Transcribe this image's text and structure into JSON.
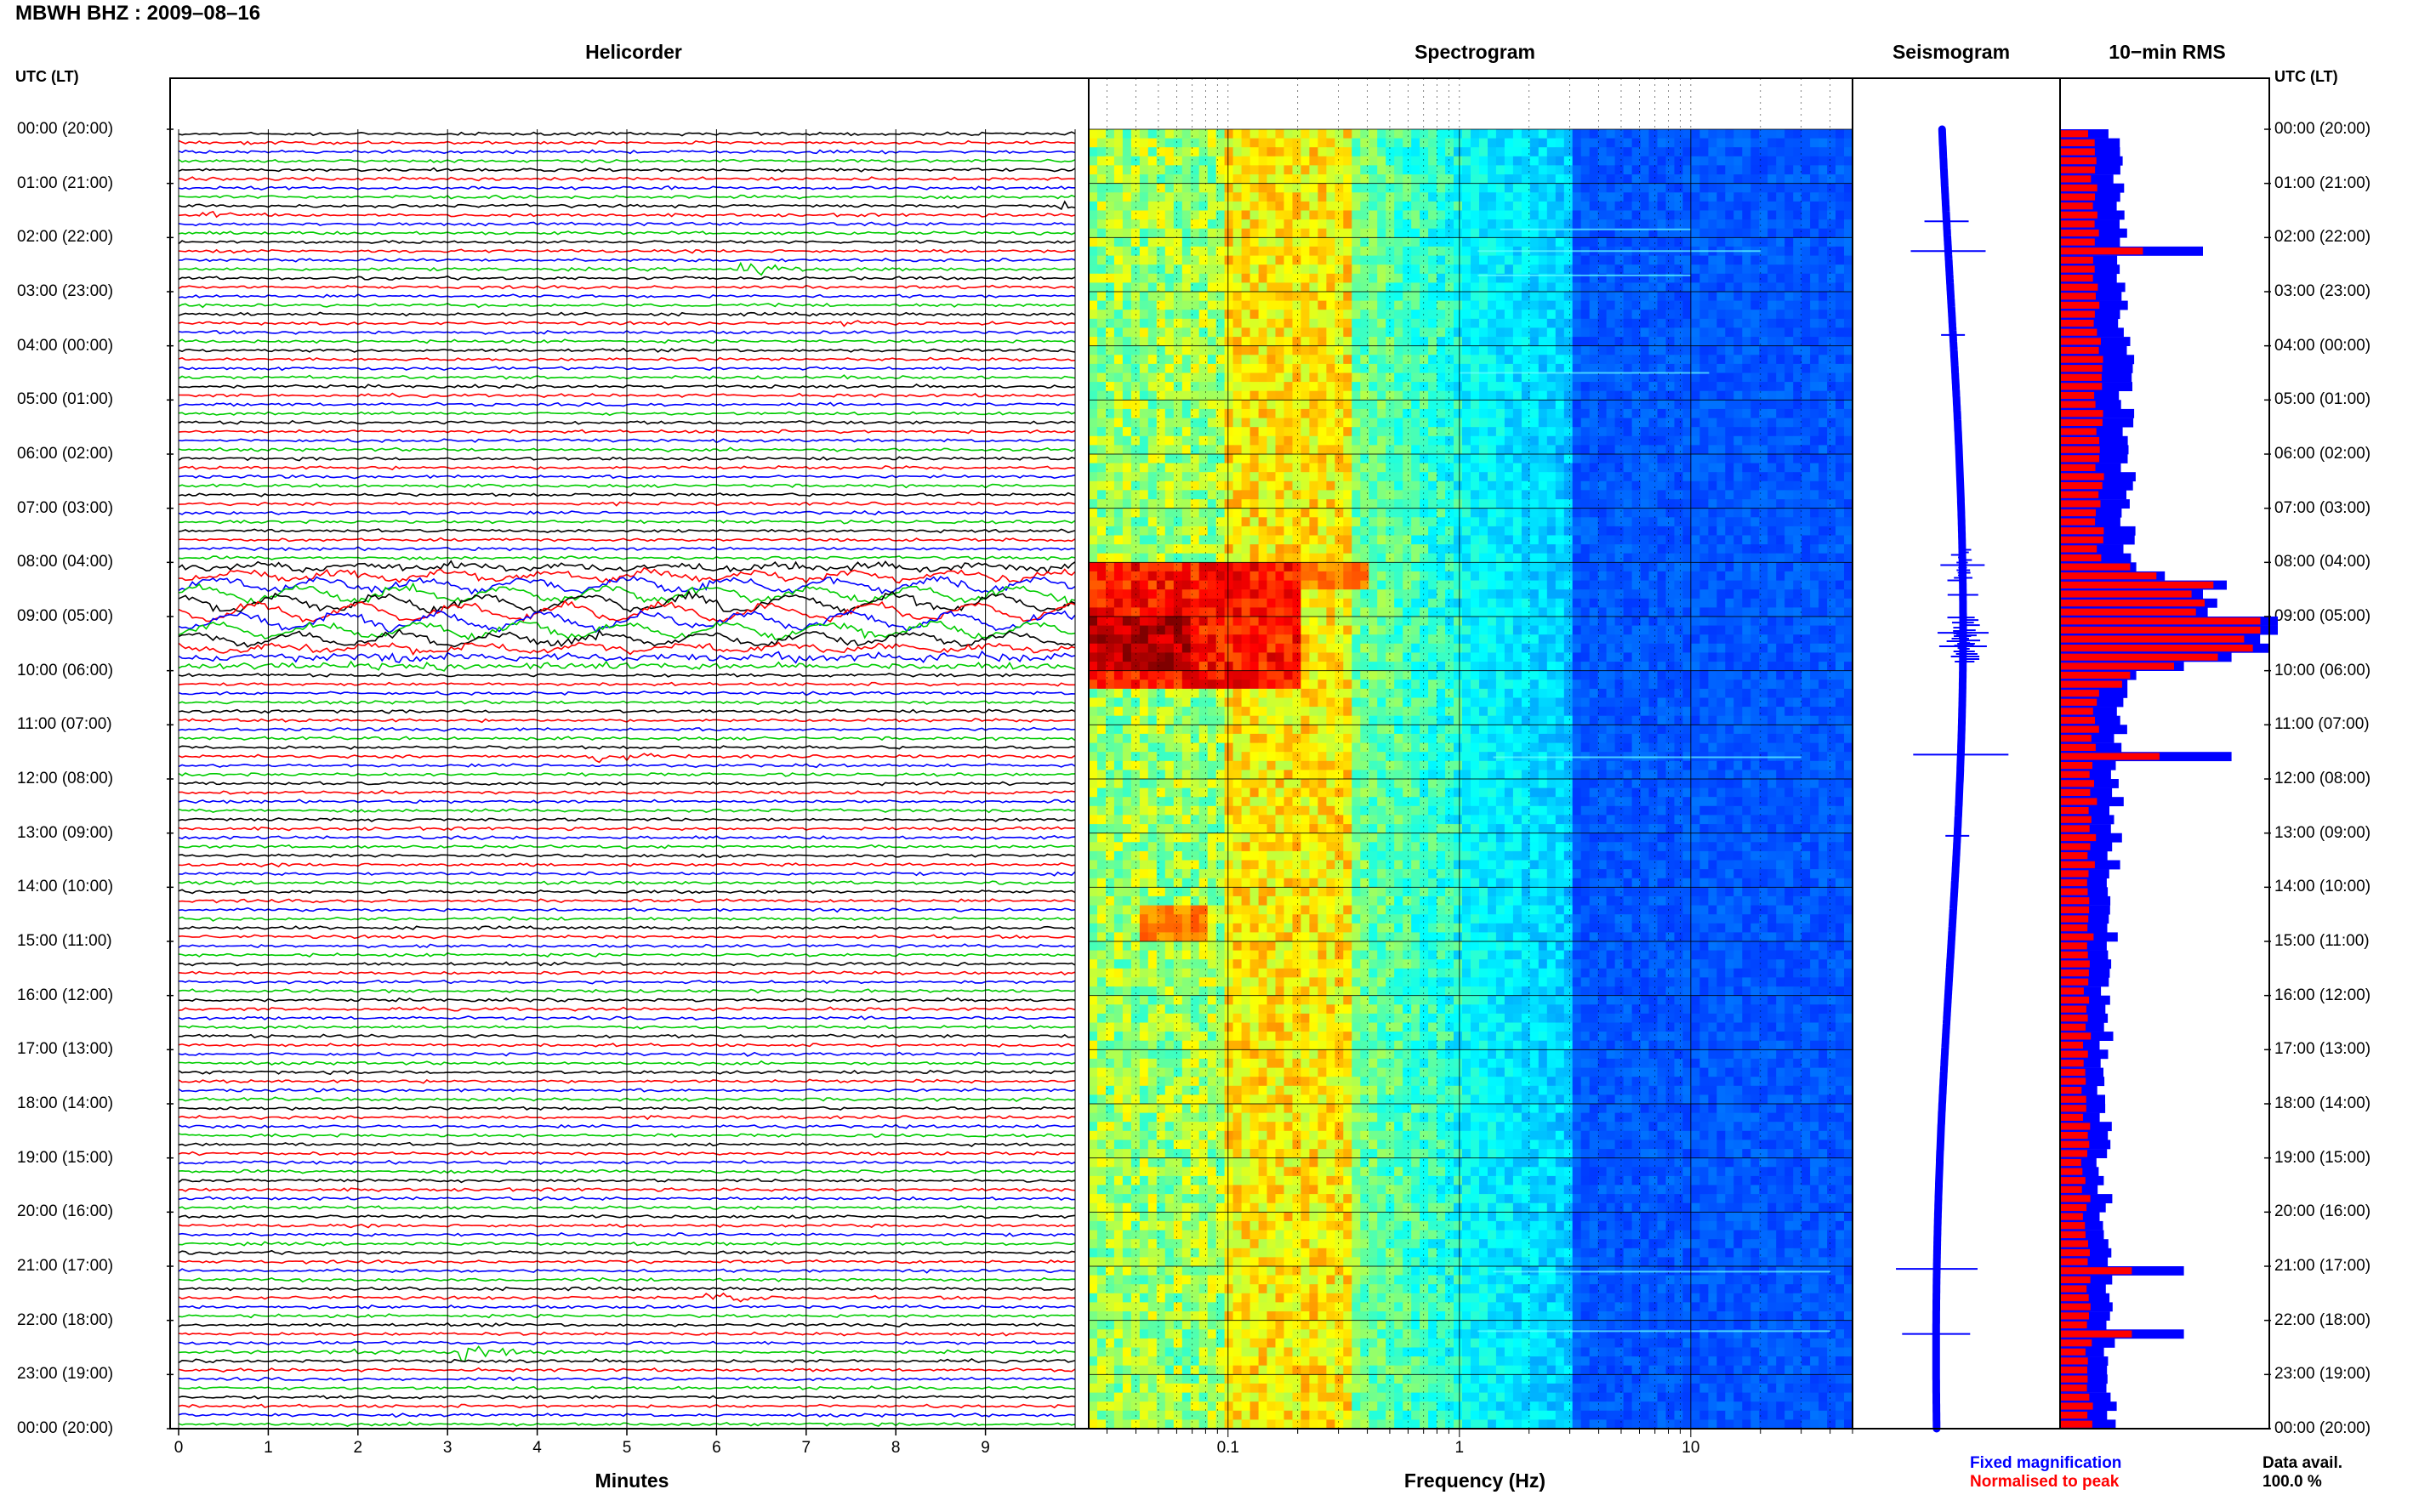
{
  "page_title": "MBWH BHZ : 2009–08–16",
  "panels": {
    "helicorder": "Helicorder",
    "spectrogram": "Spectrogram",
    "seismogram": "Seismogram",
    "rms": "10−min RMS"
  },
  "left_axis_header": "UTC (LT)",
  "right_axis_header": "UTC (LT)",
  "time_labels": [
    "00:00 (20:00)",
    "01:00 (21:00)",
    "02:00 (22:00)",
    "03:00 (23:00)",
    "04:00 (00:00)",
    "05:00 (01:00)",
    "06:00 (02:00)",
    "07:00 (03:00)",
    "08:00 (04:00)",
    "09:00 (05:00)",
    "10:00 (06:00)",
    "11:00 (07:00)",
    "12:00 (08:00)",
    "13:00 (09:00)",
    "14:00 (10:00)",
    "15:00 (11:00)",
    "16:00 (12:00)",
    "17:00 (13:00)",
    "18:00 (14:00)",
    "19:00 (15:00)",
    "20:00 (16:00)",
    "21:00 (17:00)",
    "22:00 (18:00)",
    "23:00 (19:00)",
    "00:00 (20:00)"
  ],
  "legend": {
    "fixed": "Fixed magnification",
    "normalised": "Normalised to peak",
    "data_avail_label": "Data avail.",
    "data_avail_value": "100.0 %"
  },
  "colors": {
    "trace_cycle": [
      "#000000",
      "#ff0000",
      "#0000ff",
      "#00cc00"
    ],
    "rms_fixed": "#0000ff",
    "rms_normalised": "#ff0000",
    "spectrogram_background": "#1530d8"
  },
  "chart_data": [
    {
      "type": "line",
      "title": "Helicorder",
      "xlabel": "Minutes",
      "xlim": [
        0,
        10
      ],
      "x_ticks": [
        "0",
        "1",
        "2",
        "3",
        "4",
        "5",
        "6",
        "7",
        "8",
        "9"
      ],
      "rows_per_hour": 6,
      "hours": 24,
      "events": [
        {
          "hour": 1,
          "minute": 0.3,
          "color": "#0000ff",
          "amplitude": 0.4
        },
        {
          "hour": 1,
          "minute": 9.8,
          "color": "#ff0000",
          "amplitude": 0.6
        },
        {
          "hour": 2,
          "minute": 6.3,
          "color": "#ff0000",
          "amplitude": 1.0
        },
        {
          "hour": 3,
          "minute": 7.4,
          "color": "#00cc00",
          "amplitude": 0.5
        },
        {
          "hour": 4,
          "minute": 7.2,
          "color": "#0000ff",
          "amplitude": 0.3
        },
        {
          "hour": 11,
          "minute": 4.6,
          "color": "#ff0000",
          "amplitude": 1.2
        },
        {
          "hour": 21,
          "minute": 5.9,
          "color": "#0000ff",
          "amplitude": 1.1
        },
        {
          "hour": 22,
          "minute": 3.2,
          "color": "#ff0000",
          "amplitude": 1.0
        },
        {
          "hour": 22,
          "minute": 1.9,
          "color": "#ff0000",
          "amplitude": 0.4
        }
      ],
      "teleseism_window_hours": [
        8,
        10
      ]
    },
    {
      "type": "heatmap",
      "title": "Spectrogram",
      "xlabel": "Frequency (Hz)",
      "x_scale": "log",
      "xlim": [
        0.025,
        50
      ],
      "x_ticks": [
        "0.1",
        "1",
        "10"
      ],
      "colormap": "jet"
    },
    {
      "type": "line",
      "title": "Seismogram",
      "description_series": "long-period drift with bursts near 02:00, 08:00–10:00, 11:30, 21:00, 22:00"
    },
    {
      "type": "bar",
      "title": "10−min RMS",
      "series": [
        {
          "name": "Fixed magnification",
          "color": "#0000ff"
        },
        {
          "name": "Normalised to peak",
          "color": "#ff0000"
        }
      ],
      "peak_hours": [
        8,
        9,
        10,
        11.5,
        21,
        22
      ]
    }
  ]
}
